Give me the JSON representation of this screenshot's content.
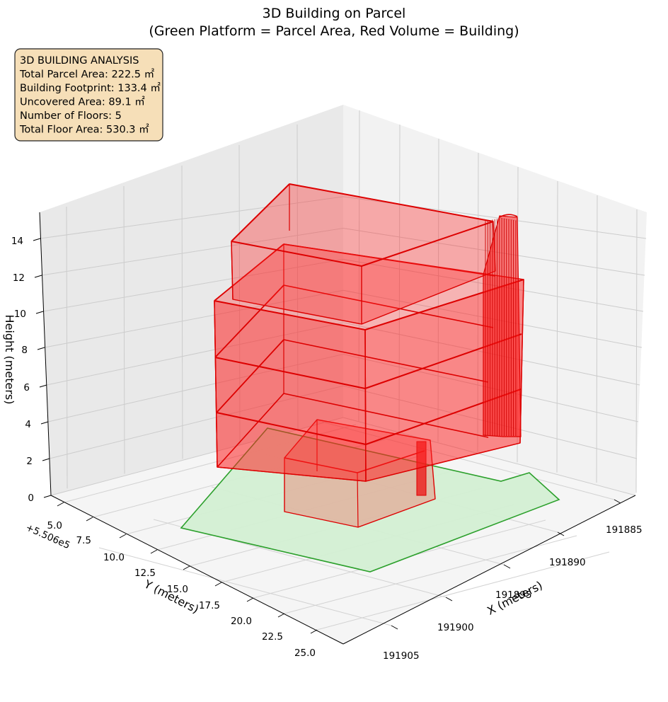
{
  "chart_data": {
    "type": "3d-polygon",
    "title_line1": "3D Building on Parcel",
    "title_line2": "(Green Platform = Parcel Area, Red Volume = Building)",
    "xlabel": "X (meters)",
    "ylabel": "Y (meters)",
    "zlabel": "Height (meters)",
    "y_offset_label": "+5.506e5",
    "x_ticks": [
      "191885",
      "191890",
      "191895",
      "191900",
      "191905"
    ],
    "y_ticks": [
      "5.0",
      "7.5",
      "10.0",
      "12.5",
      "15.0",
      "17.5",
      "20.0",
      "22.5",
      "25.0"
    ],
    "z_ticks": [
      "0",
      "2",
      "4",
      "6",
      "8",
      "10",
      "12",
      "14"
    ],
    "grid": true,
    "colors": {
      "parcel_fill": "#d3efd3",
      "parcel_edge": "#2ca02c",
      "building_fill": "#ff2020",
      "building_edge": "#dd0000",
      "info_box_fill": "#f6dfb8",
      "pane_left": "#eaeaea",
      "pane_right": "#f2f2f2",
      "pane_floor": "#f6f6f6"
    },
    "info_box": {
      "lines": [
        "3D BUILDING ANALYSIS",
        "Total Parcel Area: 222.5 ㎡",
        "Building Footprint: 133.4 ㎡",
        "Uncovered Area: 89.1 ㎡",
        "Number of Floors: 5",
        "Total Floor Area: 530.3 ㎡"
      ],
      "position": "top-left"
    },
    "parcel": {
      "total_area_m2": 222.5,
      "height_m": 0
    },
    "building": {
      "footprint_m2": 133.4,
      "floors": 5,
      "floor_area_m2": 530.3,
      "levels_m": [
        0,
        3,
        6,
        9,
        12,
        15
      ]
    }
  }
}
